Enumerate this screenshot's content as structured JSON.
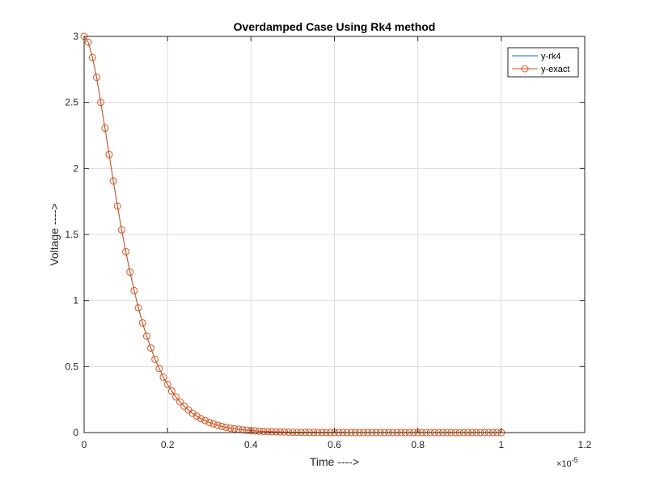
{
  "chart_data": {
    "type": "line",
    "title": "Overdamped Case Using Rk4 method",
    "xlabel": "Time ---->",
    "ylabel": "Voltage ---->",
    "x_exponent_label": "×10",
    "x_exponent_power": "-5",
    "xlim": [
      0,
      1.2
    ],
    "ylim": [
      0,
      3
    ],
    "xticks": [
      0,
      0.2,
      0.4,
      0.6,
      0.8,
      1,
      1.2
    ],
    "xtick_labels": [
      "0",
      "0.2",
      "0.4",
      "0.6",
      "0.8",
      "1",
      "1.2"
    ],
    "yticks": [
      0,
      0.5,
      1,
      1.5,
      2,
      2.5,
      3
    ],
    "ytick_labels": [
      "0",
      "0.5",
      "1",
      "1.5",
      "2",
      "2.5",
      "3"
    ],
    "grid": true,
    "legend_position": "top-right",
    "x": [
      0,
      0.01,
      0.02,
      0.03,
      0.04,
      0.05,
      0.06,
      0.07,
      0.08,
      0.09,
      0.1,
      0.11,
      0.12,
      0.13,
      0.14,
      0.15,
      0.16,
      0.17,
      0.18,
      0.19,
      0.2,
      0.21,
      0.22,
      0.23,
      0.24,
      0.25,
      0.26,
      0.27,
      0.28,
      0.29,
      0.3,
      0.31,
      0.32,
      0.33,
      0.34,
      0.35,
      0.36,
      0.37,
      0.38,
      0.39,
      0.4,
      0.41,
      0.42,
      0.43,
      0.44,
      0.45,
      0.46,
      0.47,
      0.48,
      0.49,
      0.5,
      0.51,
      0.52,
      0.53,
      0.54,
      0.55,
      0.56,
      0.57,
      0.58,
      0.59,
      0.6,
      0.61,
      0.62,
      0.63,
      0.64,
      0.65,
      0.66,
      0.67,
      0.68,
      0.69,
      0.7,
      0.71,
      0.72,
      0.73,
      0.74,
      0.75,
      0.76,
      0.77,
      0.78,
      0.79,
      0.8,
      0.81,
      0.82,
      0.83,
      0.84,
      0.85,
      0.86,
      0.87,
      0.88,
      0.89,
      0.9,
      0.91,
      0.92,
      0.93,
      0.94,
      0.95,
      0.96,
      0.97,
      0.98,
      0.99,
      1.0
    ],
    "series": [
      {
        "name": "y-rk4",
        "color": "#0072BD",
        "marker": "none",
        "values": [
          3.0,
          2.955,
          2.84,
          2.69,
          2.5,
          2.305,
          2.105,
          1.905,
          1.715,
          1.535,
          1.37,
          1.215,
          1.075,
          0.945,
          0.83,
          0.73,
          0.64,
          0.555,
          0.485,
          0.42,
          0.365,
          0.315,
          0.27,
          0.232,
          0.2,
          0.171,
          0.146,
          0.125,
          0.106,
          0.091,
          0.077,
          0.066,
          0.056,
          0.047,
          0.04,
          0.034,
          0.029,
          0.025,
          0.021,
          0.018,
          0.015,
          0.013,
          0.011,
          0.009,
          0.008,
          0.007,
          0.006,
          0.005,
          0.004,
          0.0035,
          0.003,
          0.0025,
          0.002,
          0.0017,
          0.0014,
          0.0012,
          0.001,
          0.0009,
          0.0007,
          0.0006,
          0.0005,
          0.0004,
          0.0004,
          0.0003,
          0.0003,
          0.0002,
          0.0002,
          0.0002,
          0.0001,
          0.0001,
          0.0001,
          0.0001,
          0.0001,
          0.0001,
          0,
          0,
          0,
          0,
          0,
          0,
          0,
          0,
          0,
          0,
          0,
          0,
          0,
          0,
          0,
          0,
          0,
          0,
          0,
          0,
          0,
          0,
          0,
          0,
          0,
          0,
          0
        ]
      },
      {
        "name": "y-exact",
        "color": "#D95319",
        "marker": "o",
        "values": [
          3.0,
          2.955,
          2.84,
          2.69,
          2.5,
          2.305,
          2.105,
          1.905,
          1.715,
          1.535,
          1.37,
          1.215,
          1.075,
          0.945,
          0.83,
          0.73,
          0.64,
          0.555,
          0.485,
          0.42,
          0.365,
          0.315,
          0.27,
          0.232,
          0.2,
          0.171,
          0.146,
          0.125,
          0.106,
          0.091,
          0.077,
          0.066,
          0.056,
          0.047,
          0.04,
          0.034,
          0.029,
          0.025,
          0.021,
          0.018,
          0.015,
          0.013,
          0.011,
          0.009,
          0.008,
          0.007,
          0.006,
          0.005,
          0.004,
          0.0035,
          0.003,
          0.0025,
          0.002,
          0.0017,
          0.0014,
          0.0012,
          0.001,
          0.0009,
          0.0007,
          0.0006,
          0.0005,
          0.0004,
          0.0004,
          0.0003,
          0.0003,
          0.0002,
          0.0002,
          0.0002,
          0.0001,
          0.0001,
          0.0001,
          0.0001,
          0.0001,
          0.0001,
          0,
          0,
          0,
          0,
          0,
          0,
          0,
          0,
          0,
          0,
          0,
          0,
          0,
          0,
          0,
          0,
          0,
          0,
          0,
          0,
          0,
          0,
          0,
          0,
          0,
          0,
          0
        ]
      }
    ]
  }
}
